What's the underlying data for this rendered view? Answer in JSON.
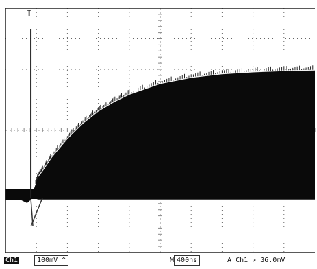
{
  "chart_data": {
    "type": "line",
    "title": "",
    "xlabel": "",
    "ylabel": "",
    "grid": true,
    "x_divisions": 10,
    "y_divisions": 8,
    "series": [
      {
        "values": [
          {
            "x": 0.0,
            "y": -0.0
          },
          {
            "x": 0.5,
            "y": 0.0
          },
          {
            "x": 0.7,
            "y": -0.1
          },
          {
            "x": 0.9,
            "y": 0.08
          },
          {
            "x": 1.05,
            "y": 0.55
          },
          {
            "x": 1.2,
            "y": 0.75
          },
          {
            "x": 1.5,
            "y": 1.2
          },
          {
            "x": 2.0,
            "y": 1.8
          },
          {
            "x": 2.5,
            "y": 2.3
          },
          {
            "x": 3.0,
            "y": 2.7
          },
          {
            "x": 3.5,
            "y": 3.0
          },
          {
            "x": 4.0,
            "y": 3.25
          },
          {
            "x": 5.0,
            "y": 3.6
          },
          {
            "x": 6.0,
            "y": 3.8
          },
          {
            "x": 7.0,
            "y": 3.92
          },
          {
            "x": 8.0,
            "y": 3.98
          },
          {
            "x": 9.0,
            "y": 4.02
          },
          {
            "x": 10.0,
            "y": 4.04
          }
        ]
      }
    ]
  },
  "trigger_marker": "T",
  "status_bar": {
    "channel": "Ch1",
    "volts_per_div": "100mV",
    "timebase": "400ns",
    "trigger_channel": "Ch1",
    "trigger_level": "36.0mV",
    "timebase_prefix": "M",
    "trigger_prefix": "A"
  }
}
